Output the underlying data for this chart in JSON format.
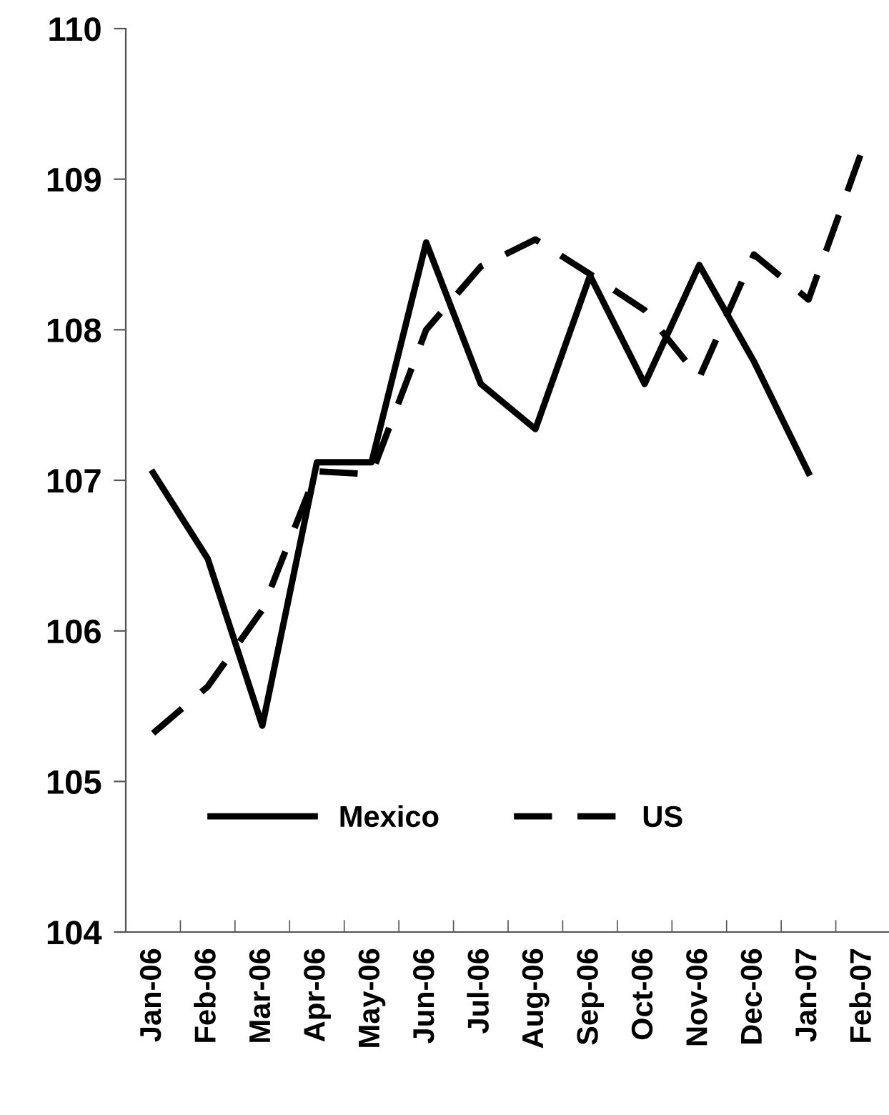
{
  "chart_data": {
    "type": "line",
    "categories": [
      "Jan-06",
      "Feb-06",
      "Mar-06",
      "Apr-06",
      "May-06",
      "Jun-06",
      "Jul-06",
      "Aug-06",
      "Sep-06",
      "Oct-06",
      "Nov-06",
      "Dec-06",
      "Jan-07",
      "Feb-07"
    ],
    "series": [
      {
        "name": "Mexico",
        "color": "#000000",
        "line_style": "solid",
        "values": [
          107.05,
          106.48,
          105.37,
          107.12,
          107.12,
          108.58,
          107.64,
          107.34,
          108.36,
          107.64,
          108.43,
          107.79,
          107.05,
          null
        ]
      },
      {
        "name": "US",
        "color": "#000000",
        "line_style": "dashed",
        "values": [
          105.32,
          105.63,
          106.14,
          107.06,
          107.04,
          108.0,
          108.42,
          108.6,
          108.37,
          108.13,
          107.68,
          108.5,
          108.2,
          109.21
        ]
      }
    ],
    "ylim": [
      104,
      110
    ],
    "yticks": [
      104,
      105,
      106,
      107,
      108,
      109,
      110
    ],
    "grid": false,
    "legend": "bottom",
    "marker": "none"
  }
}
